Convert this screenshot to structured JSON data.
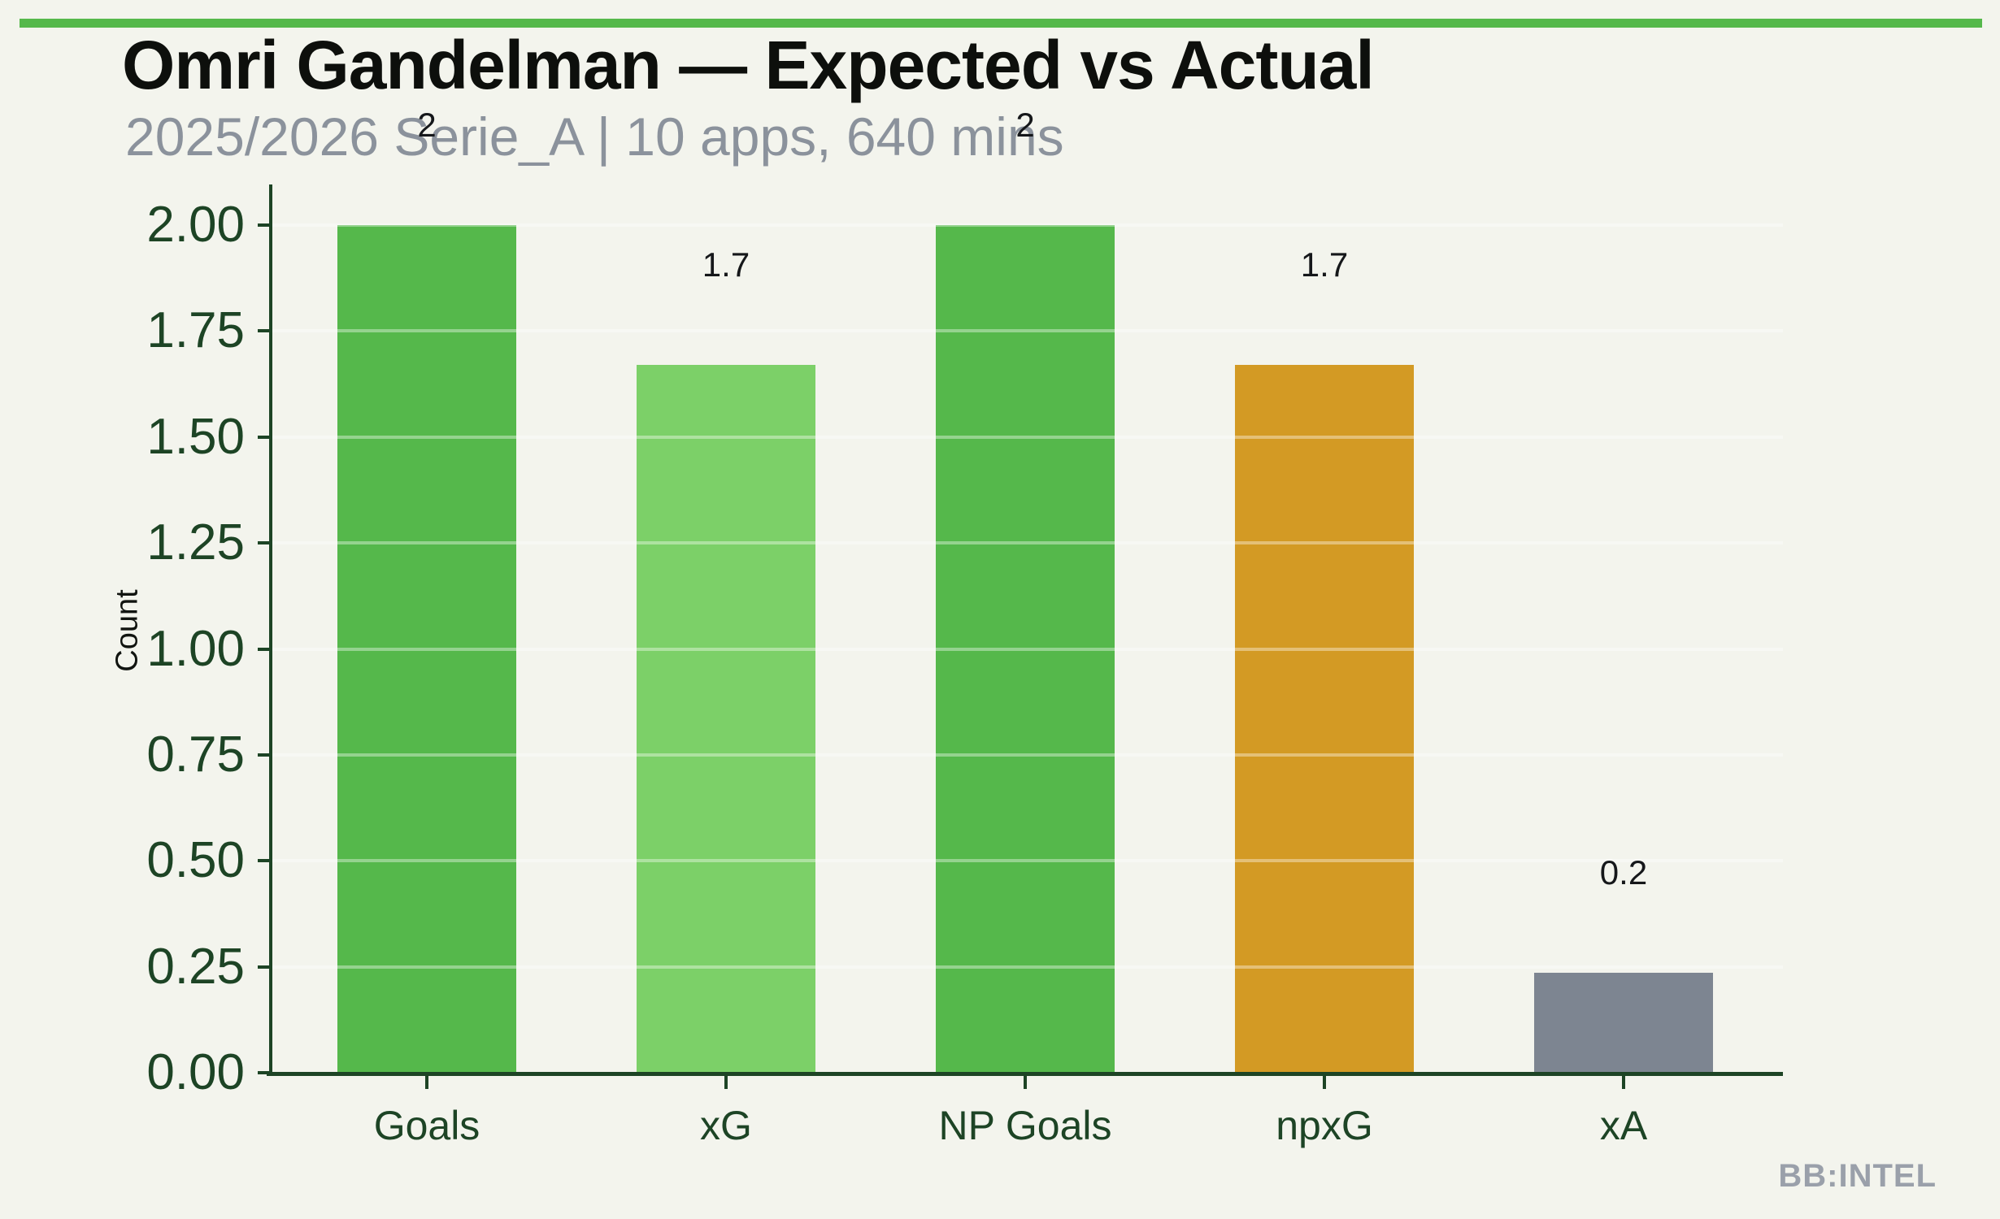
{
  "page": {
    "title": "Omri Gandelman — Expected vs Actual",
    "subtitle": "2025/2026 Serie_A | 10 apps, 640 mins",
    "watermark": "BB:INTEL"
  },
  "colors": {
    "background": "#f3f4ed",
    "top_strip_green": "#55b84b",
    "axis_dark_green": "#1d4425",
    "title_black": "#0d0f0c",
    "subtitle_gray": "#8b929c",
    "watermark_gray": "#9aa0aa",
    "gridline": "rgba(255,255,255,0.38)"
  },
  "chart_data": {
    "type": "bar",
    "title": "Omri Gandelman — Expected vs Actual",
    "subtitle": "2025/2026 Serie_A | 10 apps, 640 mins",
    "categories": [
      "Goals",
      "xG",
      "NP Goals",
      "npxG",
      "xA"
    ],
    "values": [
      2,
      1.67,
      2,
      1.67,
      0.235
    ],
    "bar_labels": [
      "2",
      "1.7",
      "2",
      "1.7",
      "0.2"
    ],
    "bar_colors": [
      "#55b84b",
      "#7cd068",
      "#55b84b",
      "#d39a24",
      "#7d8591"
    ],
    "xlabel": "",
    "ylabel": "Count",
    "ylim": [
      0,
      2.1
    ],
    "yticks": [
      0,
      0.25,
      0.5,
      0.75,
      1,
      1.25,
      1.5,
      1.75,
      2
    ],
    "ytick_labels": [
      "0.00",
      "0.25",
      "0.50",
      "0.75",
      "1.00",
      "1.25",
      "1.50",
      "1.75",
      "2.00"
    ],
    "grid": "horizontal faint white lines drawn over bars",
    "legend": false
  }
}
